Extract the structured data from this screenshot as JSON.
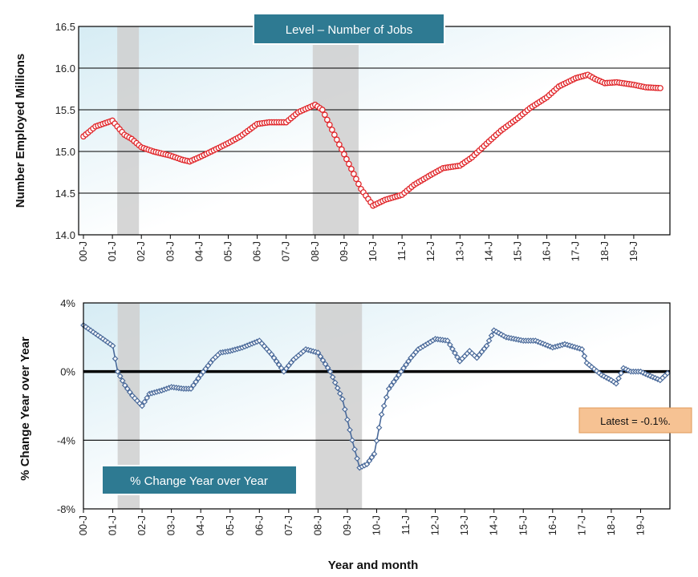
{
  "chart_data": [
    {
      "type": "line",
      "title": "Level – Number of Jobs",
      "ylabel": "Number Employed Millions",
      "xlabel": "",
      "ylim": [
        14.0,
        16.5
      ],
      "yticks": [
        "14.0",
        "14.5",
        "15.0",
        "15.5",
        "16.0",
        "16.5"
      ],
      "xticks": [
        "00-J",
        "01-J",
        "02-J",
        "03-J",
        "04-J",
        "05-J",
        "06-J",
        "07-J",
        "08-J",
        "09-J",
        "10-J",
        "11-J",
        "12-J",
        "13-J",
        "14-J",
        "15-J",
        "16-J",
        "17-J",
        "18-J",
        "19-J"
      ],
      "recession_shading": [
        [
          "2001-03",
          "2001-11"
        ],
        [
          "2007-12",
          "2009-06"
        ]
      ],
      "grid": "horizontal",
      "series_color": "#e0262a",
      "anchors": [
        [
          "2000-01",
          15.18
        ],
        [
          "2000-06",
          15.3
        ],
        [
          "2001-01",
          15.37
        ],
        [
          "2001-03",
          15.3
        ],
        [
          "2001-06",
          15.2
        ],
        [
          "2001-09",
          15.15
        ],
        [
          "2002-01",
          15.05
        ],
        [
          "2002-06",
          15.0
        ],
        [
          "2003-01",
          14.95
        ],
        [
          "2003-06",
          14.9
        ],
        [
          "2003-09",
          14.88
        ],
        [
          "2004-01",
          14.93
        ],
        [
          "2004-06",
          15.0
        ],
        [
          "2005-01",
          15.1
        ],
        [
          "2005-06",
          15.18
        ],
        [
          "2006-01",
          15.33
        ],
        [
          "2006-06",
          15.35
        ],
        [
          "2007-01",
          15.35
        ],
        [
          "2007-06",
          15.47
        ],
        [
          "2008-01",
          15.56
        ],
        [
          "2008-04",
          15.5
        ],
        [
          "2008-09",
          15.2
        ],
        [
          "2009-03",
          14.85
        ],
        [
          "2009-08",
          14.55
        ],
        [
          "2010-01",
          14.35
        ],
        [
          "2010-06",
          14.42
        ],
        [
          "2011-01",
          14.48
        ],
        [
          "2011-06",
          14.6
        ],
        [
          "2012-01",
          14.72
        ],
        [
          "2012-06",
          14.8
        ],
        [
          "2013-01",
          14.83
        ],
        [
          "2013-06",
          14.93
        ],
        [
          "2014-01",
          15.12
        ],
        [
          "2014-06",
          15.25
        ],
        [
          "2015-01",
          15.4
        ],
        [
          "2015-06",
          15.52
        ],
        [
          "2016-01",
          15.65
        ],
        [
          "2016-06",
          15.78
        ],
        [
          "2017-01",
          15.88
        ],
        [
          "2017-06",
          15.92
        ],
        [
          "2017-09",
          15.87
        ],
        [
          "2018-01",
          15.82
        ],
        [
          "2018-06",
          15.83
        ],
        [
          "2019-01",
          15.8
        ],
        [
          "2019-06",
          15.77
        ],
        [
          "2019-12",
          15.76
        ]
      ]
    },
    {
      "type": "line",
      "title": "% Change Year over Year",
      "ylabel": "% Change Year over Year",
      "xlabel": "Year and month",
      "ylim": [
        -8,
        4
      ],
      "yticks": [
        "-8%",
        "-4%",
        "0%",
        "4%"
      ],
      "xticks": [
        "00-J",
        "01-J",
        "02-J",
        "03-J",
        "04-J",
        "05-J",
        "06-J",
        "07-J",
        "08-J",
        "09-J",
        "10-J",
        "11-J",
        "12-J",
        "13-J",
        "14-J",
        "15-J",
        "16-J",
        "17-J",
        "18-J",
        "19-J"
      ],
      "recession_shading": [
        [
          "2001-03",
          "2001-11"
        ],
        [
          "2007-12",
          "2009-06"
        ]
      ],
      "grid": "horizontal",
      "series_color": "#4a6a9a",
      "annotation": "Latest = -0.1%.",
      "anchors": [
        [
          "2000-01",
          2.7
        ],
        [
          "2000-06",
          2.2
        ],
        [
          "2001-01",
          1.5
        ],
        [
          "2001-03",
          0.0
        ],
        [
          "2001-06",
          -0.8
        ],
        [
          "2001-09",
          -1.4
        ],
        [
          "2002-01",
          -2.0
        ],
        [
          "2002-04",
          -1.3
        ],
        [
          "2002-09",
          -1.1
        ],
        [
          "2003-01",
          -0.9
        ],
        [
          "2003-06",
          -1.0
        ],
        [
          "2003-09",
          -1.0
        ],
        [
          "2004-01",
          -0.2
        ],
        [
          "2004-06",
          0.7
        ],
        [
          "2004-09",
          1.1
        ],
        [
          "2005-01",
          1.2
        ],
        [
          "2005-06",
          1.4
        ],
        [
          "2006-01",
          1.8
        ],
        [
          "2006-06",
          1.0
        ],
        [
          "2006-11",
          0.0
        ],
        [
          "2007-03",
          0.7
        ],
        [
          "2007-08",
          1.3
        ],
        [
          "2008-01",
          1.1
        ],
        [
          "2008-06",
          0.0
        ],
        [
          "2008-11",
          -1.6
        ],
        [
          "2009-03",
          -4.0
        ],
        [
          "2009-06",
          -5.6
        ],
        [
          "2009-09",
          -5.4
        ],
        [
          "2009-12",
          -4.8
        ],
        [
          "2010-03",
          -2.5
        ],
        [
          "2010-06",
          -1.0
        ],
        [
          "2010-11",
          0.0
        ],
        [
          "2011-03",
          0.8
        ],
        [
          "2011-06",
          1.3
        ],
        [
          "2012-01",
          1.9
        ],
        [
          "2012-06",
          1.8
        ],
        [
          "2012-11",
          0.6
        ],
        [
          "2013-03",
          1.2
        ],
        [
          "2013-06",
          0.8
        ],
        [
          "2013-10",
          1.5
        ],
        [
          "2014-01",
          2.4
        ],
        [
          "2014-06",
          2.0
        ],
        [
          "2015-01",
          1.8
        ],
        [
          "2015-06",
          1.8
        ],
        [
          "2016-01",
          1.4
        ],
        [
          "2016-06",
          1.6
        ],
        [
          "2017-01",
          1.3
        ],
        [
          "2017-03",
          0.5
        ],
        [
          "2017-09",
          -0.2
        ],
        [
          "2018-01",
          -0.5
        ],
        [
          "2018-03",
          -0.7
        ],
        [
          "2018-06",
          0.2
        ],
        [
          "2018-09",
          0.0
        ],
        [
          "2019-01",
          0.0
        ],
        [
          "2019-04",
          -0.2
        ],
        [
          "2019-09",
          -0.5
        ],
        [
          "2019-12",
          -0.1
        ]
      ]
    }
  ]
}
